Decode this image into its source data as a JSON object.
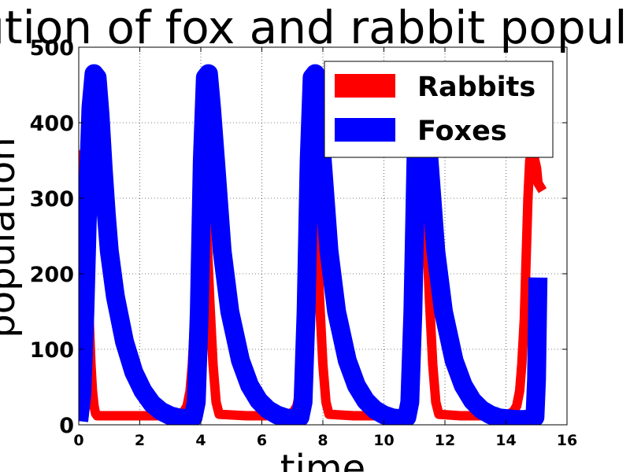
{
  "chart_data": {
    "type": "line",
    "title": "Evolution of fox and rabbit populations",
    "xlabel": "time",
    "ylabel": "population",
    "xlim": [
      0,
      16
    ],
    "ylim": [
      0,
      500
    ],
    "xticks": [
      "0",
      "2",
      "4",
      "6",
      "8",
      "10",
      "12",
      "14",
      "16"
    ],
    "yticks": [
      "0",
      "100",
      "200",
      "300",
      "400",
      "500"
    ],
    "grid": true,
    "legend_position": "top-right",
    "series": [
      {
        "name": "Rabbits",
        "color": "#ff0000",
        "x": [
          0,
          0.05,
          0.1,
          0.15,
          0.2,
          0.25,
          0.3,
          0.35,
          0.4,
          0.45,
          0.5,
          0.55,
          0.6,
          0.65,
          0.7,
          0.75,
          0.8,
          1.0,
          2.0,
          3.0,
          3.3,
          3.45,
          3.55,
          3.65,
          3.72,
          3.8,
          3.86,
          3.92,
          3.98,
          4.05,
          4.12,
          4.2,
          4.3,
          4.4,
          4.5,
          4.6,
          5.5,
          6.5,
          6.9,
          7.05,
          7.15,
          7.25,
          7.32,
          7.4,
          7.46,
          7.52,
          7.58,
          7.65,
          7.72,
          7.8,
          7.9,
          8.0,
          8.1,
          8.2,
          9.0,
          10.0,
          10.5,
          10.65,
          10.75,
          10.85,
          10.92,
          11.0,
          11.06,
          11.12,
          11.18,
          11.25,
          11.32,
          11.4,
          11.5,
          11.6,
          11.7,
          11.8,
          12.5,
          13.5,
          14.1,
          14.25,
          14.35,
          14.45,
          14.52,
          14.6,
          14.66,
          14.72,
          14.78,
          14.85,
          14.92,
          15.0,
          15.05,
          15.2
        ],
        "y": [
          120,
          260,
          340,
          360,
          330,
          270,
          200,
          130,
          80,
          45,
          25,
          15,
          12,
          12,
          12,
          12,
          12,
          12,
          12,
          12,
          14,
          18,
          25,
          45,
          80,
          140,
          220,
          300,
          350,
          360,
          320,
          250,
          160,
          80,
          30,
          14,
          12,
          12,
          14,
          18,
          25,
          45,
          80,
          140,
          220,
          300,
          350,
          360,
          320,
          250,
          160,
          80,
          30,
          14,
          12,
          12,
          14,
          18,
          25,
          45,
          80,
          140,
          220,
          300,
          350,
          360,
          320,
          250,
          160,
          80,
          30,
          14,
          12,
          12,
          14,
          18,
          25,
          45,
          80,
          140,
          220,
          300,
          350,
          360,
          355,
          340,
          320,
          310
        ]
      },
      {
        "name": "Foxes",
        "color": "#0000ff",
        "x": [
          0,
          0.1,
          0.2,
          0.3,
          0.4,
          0.5,
          0.6,
          0.7,
          0.8,
          0.9,
          1.0,
          1.2,
          1.5,
          1.8,
          2.1,
          2.4,
          2.7,
          3.0,
          3.3,
          3.6,
          3.75,
          3.85,
          3.95,
          4.05,
          4.15,
          4.25,
          4.35,
          4.5,
          4.7,
          4.95,
          5.3,
          5.6,
          5.9,
          6.2,
          6.5,
          6.8,
          7.1,
          7.25,
          7.35,
          7.45,
          7.55,
          7.65,
          7.75,
          7.85,
          8.0,
          8.2,
          8.45,
          8.8,
          9.1,
          9.4,
          9.7,
          10.0,
          10.3,
          10.6,
          10.75,
          10.85,
          10.95,
          11.05,
          11.15,
          11.25,
          11.35,
          11.5,
          11.7,
          11.95,
          12.3,
          12.6,
          12.9,
          13.2,
          13.5,
          13.8,
          14.1,
          14.3,
          14.45,
          14.6,
          14.75,
          14.85,
          14.95,
          15.0,
          15.05
        ],
        "y": [
          5,
          40,
          150,
          300,
          420,
          465,
          460,
          410,
          340,
          280,
          230,
          170,
          110,
          70,
          45,
          28,
          18,
          12,
          9,
          8,
          10,
          30,
          150,
          350,
          460,
          465,
          420,
          340,
          230,
          150,
          85,
          52,
          32,
          20,
          13,
          9,
          8,
          10,
          30,
          150,
          350,
          460,
          465,
          420,
          340,
          230,
          150,
          85,
          52,
          32,
          20,
          13,
          9,
          8,
          10,
          30,
          150,
          350,
          460,
          465,
          420,
          340,
          230,
          150,
          85,
          52,
          32,
          20,
          13,
          9,
          8,
          7,
          7,
          7,
          8,
          9,
          10,
          60,
          195
        ]
      }
    ]
  }
}
